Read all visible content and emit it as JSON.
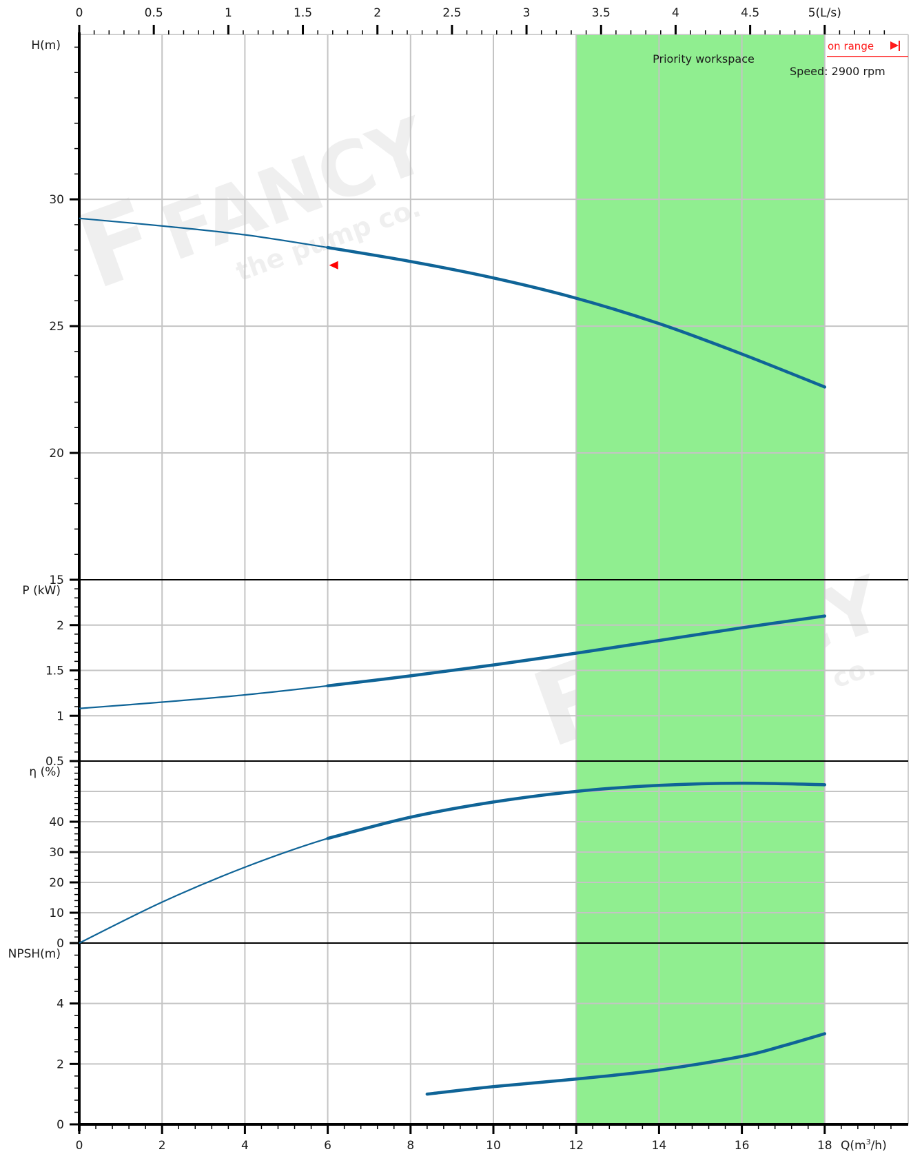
{
  "chart_data": {
    "type": "line",
    "x_axis": {
      "label": "Q(m³/h)",
      "range": [
        0,
        19.5
      ],
      "ticks": [
        0,
        2,
        4,
        6,
        8,
        10,
        12,
        14,
        16,
        18
      ],
      "tick_labels": [
        "0",
        "2",
        "4",
        "6",
        "8",
        "10",
        "12",
        "14",
        "16",
        "18"
      ]
    },
    "x2_axis": {
      "label": "5(L/s)",
      "unit": "L/s",
      "ticks": [
        0,
        0.5,
        1,
        1.5,
        2,
        2.5,
        3,
        3.5,
        4,
        4.5,
        5
      ],
      "tick_labels": [
        "0",
        "0.5",
        "1",
        "1.5",
        "2",
        "2.5",
        "3",
        "3.5",
        "4",
        "4.5",
        "5(L/s)"
      ]
    },
    "grid": true,
    "highlight_band": {
      "label": "Priority workspace",
      "x_range": [
        12,
        18
      ],
      "color": "#90ee90"
    },
    "annotations": {
      "speed": "Speed: 2900 rpm",
      "operation_range": "on range",
      "watermark_brand": "FANCY",
      "watermark_tagline": "the pump co."
    },
    "operating_range_x": [
      6,
      18
    ],
    "panels": [
      {
        "id": "head",
        "ylabel": "H(m)",
        "ylim": [
          15,
          36.5
        ],
        "ticks": [
          15,
          20,
          25,
          30
        ],
        "tick_labels": [
          "15",
          "20",
          "25",
          "30"
        ],
        "series": [
          {
            "color": "#0f6497",
            "x": [
              0,
              2,
              4,
              6,
              8,
              10,
              12,
              14,
              16,
              18
            ],
            "y": [
              29.25,
              28.95,
              28.6,
              28.1,
              27.55,
              26.9,
              26.1,
              25.1,
              23.9,
              22.6
            ]
          }
        ],
        "marker": {
          "x": 6.15,
          "y": 27.4,
          "color": "#ff0000"
        }
      },
      {
        "id": "power",
        "ylabel": "P (kW)",
        "ylim": [
          0.5,
          2.5
        ],
        "ticks": [
          0.5,
          1,
          1.5,
          2
        ],
        "tick_labels": [
          "0.5",
          "1",
          "1.5",
          "2"
        ],
        "series": [
          {
            "color": "#0f6497",
            "x": [
              0,
              2,
              4,
              6,
              8,
              10,
              12,
              14,
              16,
              18
            ],
            "y": [
              1.08,
              1.15,
              1.23,
              1.33,
              1.44,
              1.56,
              1.69,
              1.83,
              1.97,
              2.1
            ]
          }
        ]
      },
      {
        "id": "efficiency",
        "ylabel": "η (%)",
        "ylim": [
          0,
          60
        ],
        "ticks": [
          0,
          10,
          20,
          30,
          40
        ],
        "tick_labels": [
          "0",
          "10",
          "20",
          "30",
          "40"
        ],
        "series": [
          {
            "color": "#0f6497",
            "x": [
              0,
              2,
              4,
              6,
              8,
              10,
              12,
              14,
              16,
              18
            ],
            "y": [
              0,
              13.5,
              25,
              34.5,
              41.5,
              46.5,
              50,
              52,
              52.7,
              52.2
            ]
          }
        ]
      },
      {
        "id": "npsh",
        "ylabel": "NPSH(m)",
        "ylim": [
          0,
          6
        ],
        "ticks": [
          0,
          2,
          4
        ],
        "tick_labels": [
          "0",
          "2",
          "4"
        ],
        "series": [
          {
            "color": "#0f6497",
            "x": [
              8.4,
              10,
              12,
              14,
              16,
              17,
              18
            ],
            "y": [
              1.0,
              1.25,
              1.5,
              1.8,
              2.25,
              2.6,
              3.0
            ]
          }
        ]
      }
    ]
  }
}
